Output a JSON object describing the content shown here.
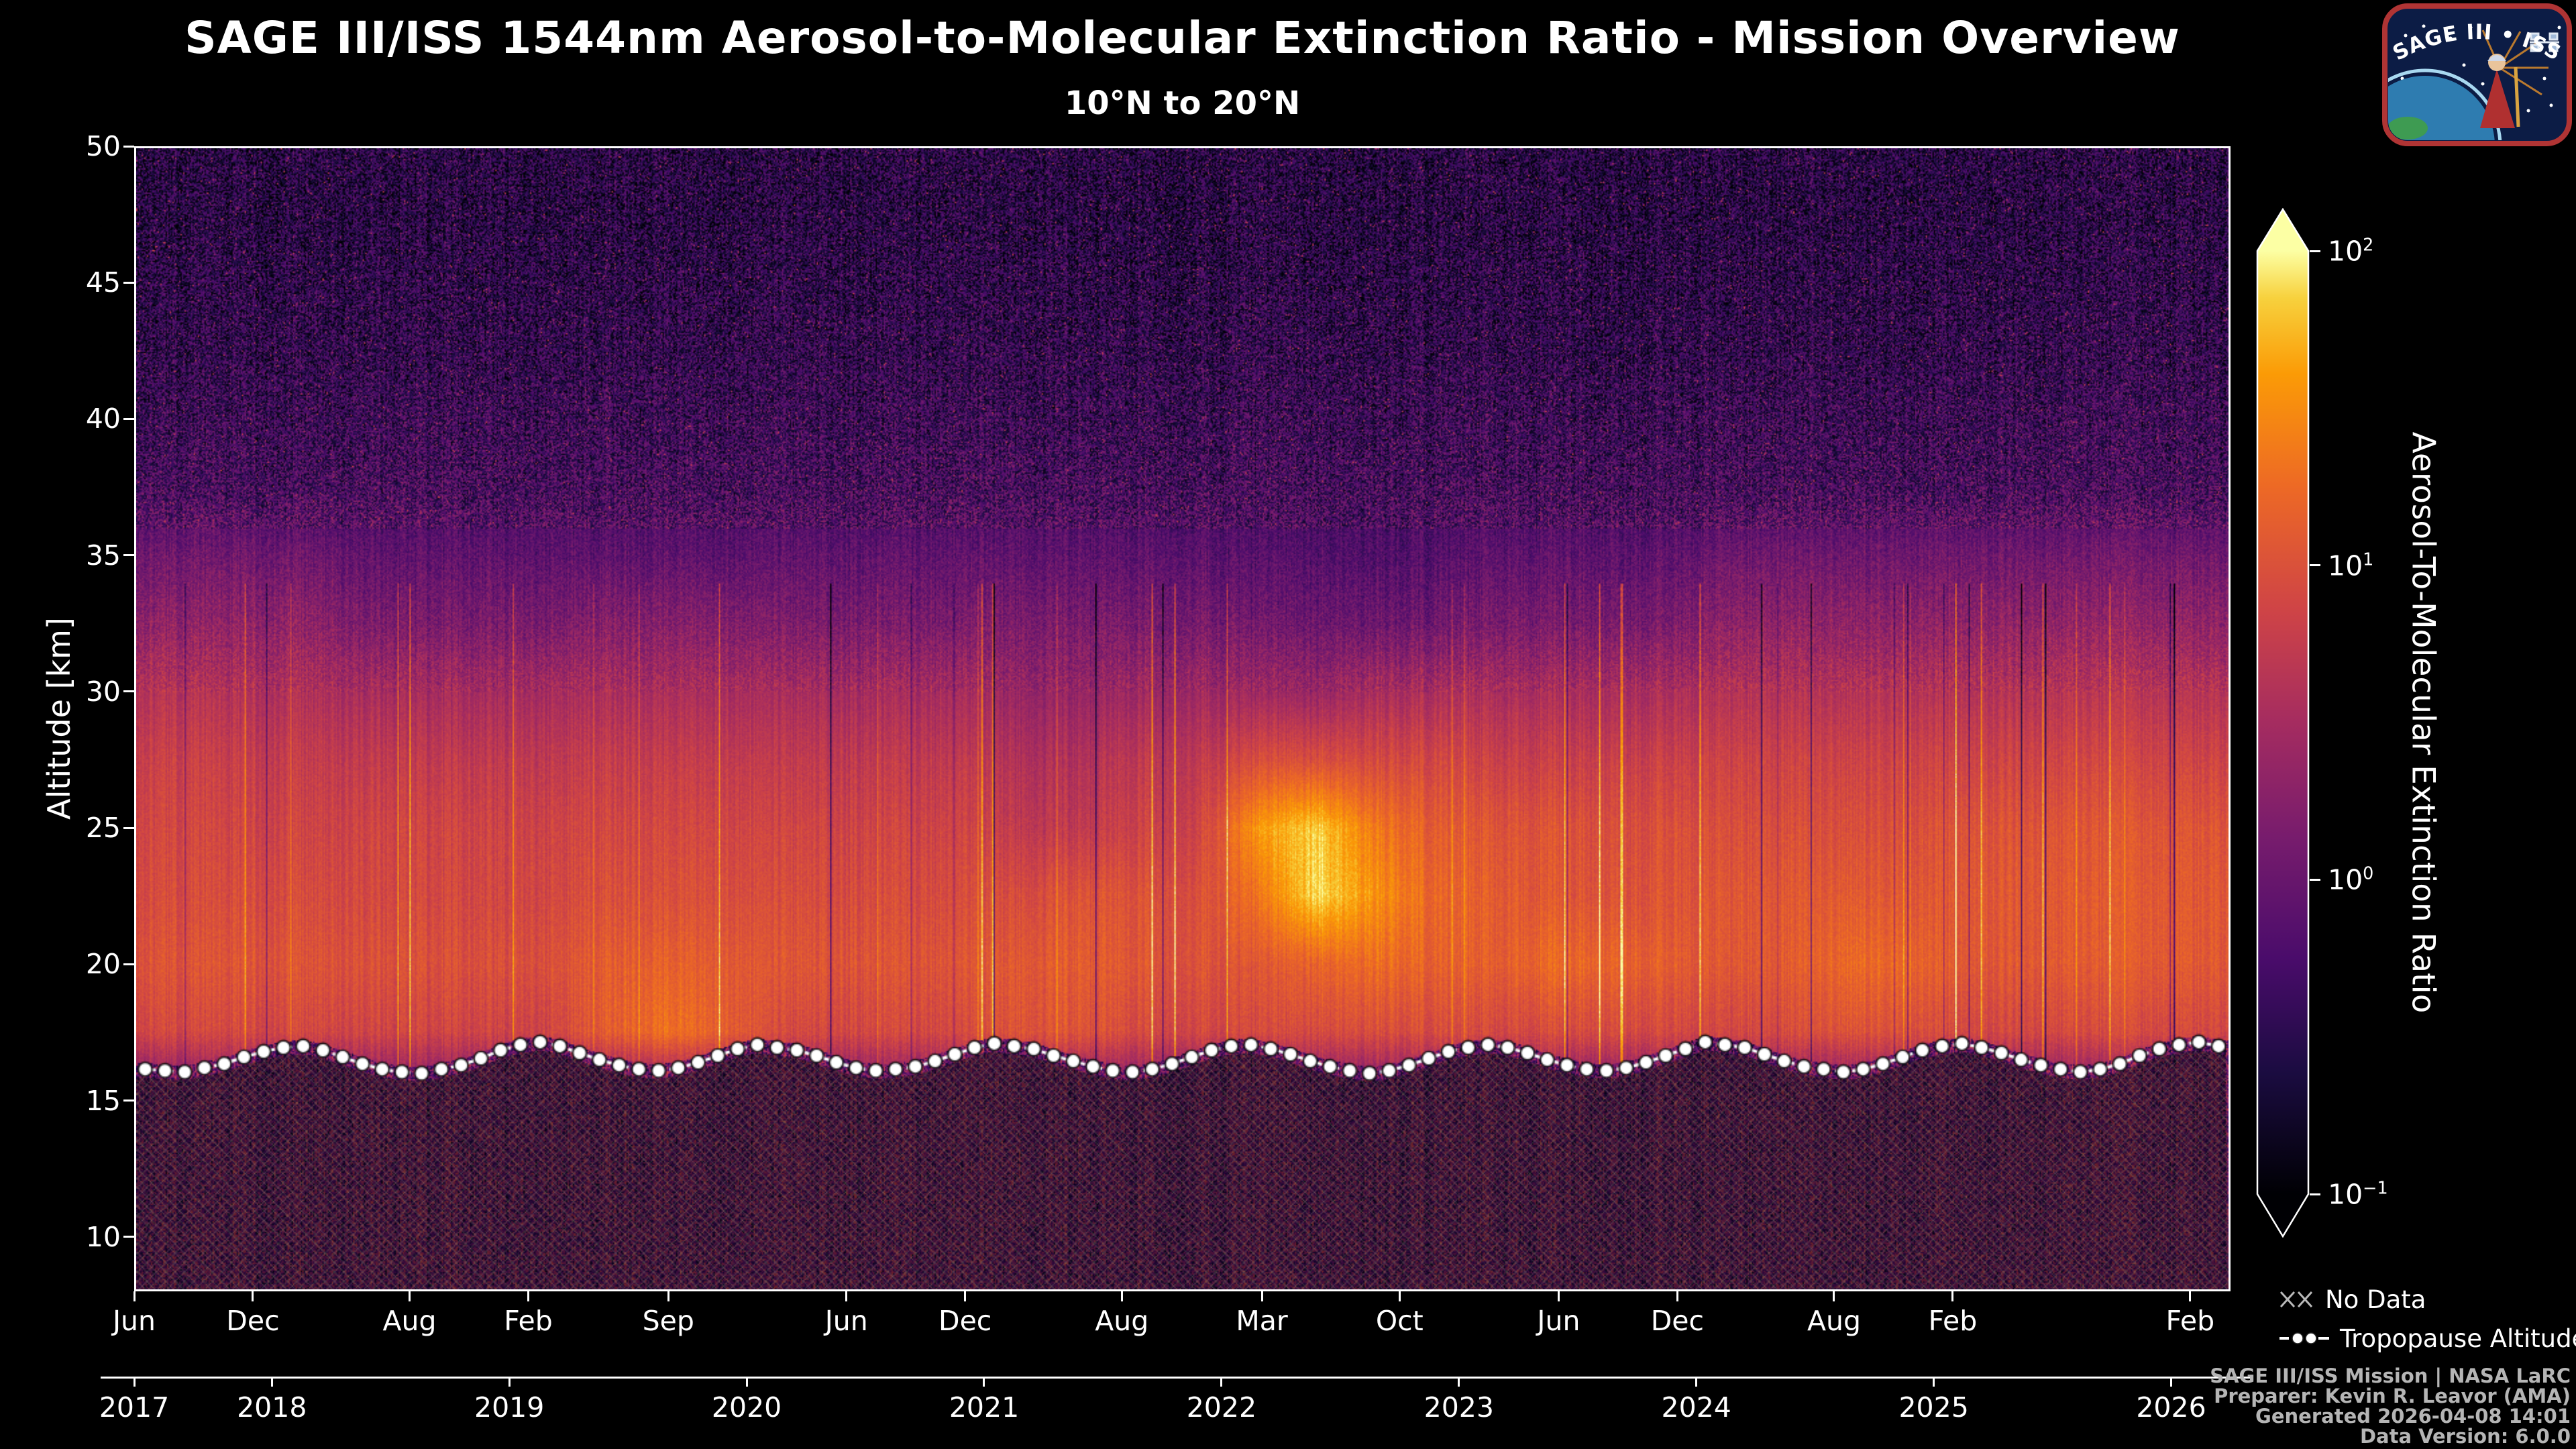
{
  "title": "SAGE III/ISS 1544nm Aerosol-to-Molecular Extinction Ratio - Mission Overview",
  "subtitle": "10°N to 20°N",
  "logo": {
    "text": "SAGE III • ISS"
  },
  "legend": {
    "no_data": "No Data",
    "tropopause": "Tropopause Altitude"
  },
  "icons": {
    "no_data": "xx-crosshatch",
    "tropopause": "dashed-line-with-dots"
  },
  "footer": {
    "lines": [
      "SAGE III/ISS Mission | NASA LaRC",
      "Preparer: Kevin R. Leavor (AMA)",
      "Generated 2026-04-08 14:01",
      "Data Version: 6.0.0"
    ]
  },
  "chart_data": {
    "type": "heatmap",
    "title": "SAGE III/ISS 1544nm Aerosol-to-Molecular Extinction Ratio - Mission Overview",
    "subtitle": "10°N to 20°N",
    "xlabel": "",
    "ylabel": "Altitude [km]",
    "grid": false,
    "x_range_years": [
      2017.42,
      2026.25
    ],
    "y_range_km": [
      8,
      50
    ],
    "y_ticks": [
      10,
      15,
      20,
      25,
      30,
      35,
      40,
      45,
      50
    ],
    "x_month_ticks": [
      {
        "label": "Jun",
        "t": 2017.42
      },
      {
        "label": "Dec",
        "t": 2017.92
      },
      {
        "label": "Aug",
        "t": 2018.58
      },
      {
        "label": "Feb",
        "t": 2019.08
      },
      {
        "label": "Sep",
        "t": 2019.67
      },
      {
        "label": "Jun",
        "t": 2020.42
      },
      {
        "label": "Dec",
        "t": 2020.92
      },
      {
        "label": "Aug",
        "t": 2021.58
      },
      {
        "label": "Mar",
        "t": 2022.17
      },
      {
        "label": "Oct",
        "t": 2022.75
      },
      {
        "label": "Jun",
        "t": 2023.42
      },
      {
        "label": "Dec",
        "t": 2023.92
      },
      {
        "label": "Aug",
        "t": 2024.58
      },
      {
        "label": "Feb",
        "t": 2025.08
      },
      {
        "label": "Feb",
        "t": 2026.08
      }
    ],
    "x_year_ticks": [
      {
        "label": "2017",
        "t": 2017.42
      },
      {
        "label": "2018",
        "t": 2018.0
      },
      {
        "label": "2019",
        "t": 2019.0
      },
      {
        "label": "2020",
        "t": 2020.0
      },
      {
        "label": "2021",
        "t": 2021.0
      },
      {
        "label": "2022",
        "t": 2022.0
      },
      {
        "label": "2023",
        "t": 2023.0
      },
      {
        "label": "2024",
        "t": 2024.0
      },
      {
        "label": "2025",
        "t": 2025.0
      },
      {
        "label": "2026",
        "t": 2026.0
      }
    ],
    "colorbar": {
      "label": "Aerosol-To-Molecular Extinction Ratio",
      "scale": "log",
      "tick_exponents": [
        2,
        1,
        0,
        -1
      ],
      "range_log10": [
        -1.3,
        2.1
      ],
      "colormap": "inferno",
      "stops": [
        [
          0.0,
          "#000004"
        ],
        [
          0.13,
          "#1b0c41"
        ],
        [
          0.25,
          "#4a0c6b"
        ],
        [
          0.38,
          "#781c6d"
        ],
        [
          0.5,
          "#a52c60"
        ],
        [
          0.62,
          "#cf4446"
        ],
        [
          0.75,
          "#ed6925"
        ],
        [
          0.87,
          "#fb9b06"
        ],
        [
          0.95,
          "#f7d13d"
        ],
        [
          1.0,
          "#fcffa4"
        ]
      ]
    },
    "heatmap_log10": {
      "comment_units": "log10 of extinction ratio, coarse grid; rows = altitudes (top to bottom), cols = quarterly times",
      "times_start": 2017.4,
      "times_step": 0.25,
      "altitudes": [
        50,
        47.5,
        45,
        42.5,
        40,
        37.5,
        35,
        32.5,
        30,
        27.5,
        25,
        22.5,
        20,
        17.5,
        15,
        12.5,
        10
      ],
      "values": [
        [
          -0.8,
          -0.8,
          -0.8,
          -0.8,
          -0.8,
          -0.8,
          -0.8,
          -0.8,
          -0.8,
          -0.8,
          -0.8,
          -0.8,
          -0.8,
          -0.8,
          -0.8,
          -0.8,
          -0.8,
          -0.8,
          -0.8,
          -0.8,
          -0.8,
          -0.8,
          -0.8,
          -0.8,
          -0.8,
          -0.8,
          -0.8,
          -0.8,
          -0.8,
          -0.8,
          -0.8,
          -0.8,
          -0.8,
          -0.8,
          -0.8,
          -0.8
        ],
        [
          -0.8,
          -0.8,
          -0.8,
          -0.8,
          -0.8,
          -0.8,
          -0.8,
          -0.8,
          -0.8,
          -0.8,
          -0.8,
          -0.8,
          -0.8,
          -0.8,
          -0.8,
          -0.8,
          -0.8,
          -0.8,
          -0.8,
          -0.8,
          -0.8,
          -0.8,
          -0.8,
          -0.8,
          -0.8,
          -0.8,
          -0.8,
          -0.8,
          -0.8,
          -0.8,
          -0.8,
          -0.8,
          -0.8,
          -0.8,
          -0.8,
          -0.8
        ],
        [
          -0.75,
          -0.75,
          -0.75,
          -0.75,
          -0.75,
          -0.75,
          -0.75,
          -0.75,
          -0.75,
          -0.75,
          -0.75,
          -0.75,
          -0.75,
          -0.75,
          -0.75,
          -0.75,
          -0.75,
          -0.75,
          -0.75,
          -0.75,
          -0.75,
          -0.75,
          -0.75,
          -0.75,
          -0.75,
          -0.75,
          -0.75,
          -0.75,
          -0.75,
          -0.75,
          -0.75,
          -0.75,
          -0.75,
          -0.75,
          -0.75,
          -0.75
        ],
        [
          -0.7,
          -0.7,
          -0.7,
          -0.7,
          -0.7,
          -0.7,
          -0.7,
          -0.7,
          -0.7,
          -0.7,
          -0.7,
          -0.7,
          -0.7,
          -0.7,
          -0.7,
          -0.7,
          -0.7,
          -0.7,
          -0.7,
          -0.7,
          -0.7,
          -0.7,
          -0.7,
          -0.7,
          -0.7,
          -0.7,
          -0.7,
          -0.7,
          -0.7,
          -0.7,
          -0.7,
          -0.7,
          -0.7,
          -0.7,
          -0.7,
          -0.7
        ],
        [
          -0.6,
          -0.6,
          -0.6,
          -0.6,
          -0.6,
          -0.6,
          -0.6,
          -0.6,
          -0.6,
          -0.6,
          -0.6,
          -0.6,
          -0.6,
          -0.6,
          -0.6,
          -0.6,
          -0.6,
          -0.6,
          -0.6,
          -0.6,
          -0.6,
          -0.6,
          -0.6,
          -0.6,
          -0.6,
          -0.6,
          -0.6,
          -0.6,
          -0.6,
          -0.6,
          -0.6,
          -0.6,
          -0.6,
          -0.6,
          -0.6,
          -0.6
        ],
        [
          -0.5,
          -0.5,
          -0.5,
          -0.5,
          -0.5,
          -0.5,
          -0.5,
          -0.5,
          -0.5,
          -0.5,
          -0.5,
          -0.5,
          -0.5,
          -0.5,
          -0.5,
          -0.5,
          -0.5,
          -0.5,
          -0.5,
          -0.5,
          -0.5,
          -0.5,
          -0.5,
          -0.5,
          -0.5,
          -0.5,
          -0.5,
          -0.5,
          -0.5,
          -0.5,
          -0.5,
          -0.5,
          -0.5,
          -0.5,
          -0.5,
          -0.5
        ],
        [
          -0.1,
          -0.1,
          -0.1,
          -0.1,
          -0.25,
          -0.25,
          -0.25,
          -0.25,
          -0.25,
          -0.25,
          -0.25,
          -0.25,
          -0.25,
          -0.25,
          -0.25,
          -0.25,
          -0.25,
          -0.25,
          -0.25,
          -0.35,
          -0.35,
          -0.35,
          -0.35,
          -0.25,
          -0.25,
          -0.25,
          -0.25,
          -0.1,
          -0.1,
          -0.1,
          -0.1,
          -0.1,
          -0.1,
          -0.1,
          -0.1,
          -0.1
        ],
        [
          0.2,
          0.2,
          0.2,
          0.2,
          0.0,
          0.0,
          0.0,
          0.0,
          0.1,
          0.1,
          0.1,
          0.0,
          0.0,
          0.0,
          0.0,
          0.0,
          0.0,
          0.0,
          0.0,
          -0.1,
          -0.1,
          -0.1,
          -0.1,
          0.0,
          0.0,
          0.0,
          0.0,
          0.2,
          0.2,
          0.2,
          0.2,
          0.2,
          0.2,
          0.2,
          0.2,
          0.2
        ],
        [
          0.55,
          0.55,
          0.5,
          0.5,
          0.4,
          0.4,
          0.4,
          0.4,
          0.45,
          0.45,
          0.45,
          0.4,
          0.4,
          0.4,
          0.4,
          0.25,
          0.25,
          0.35,
          0.35,
          0.3,
          0.3,
          0.45,
          0.45,
          0.45,
          0.45,
          0.45,
          0.45,
          0.55,
          0.55,
          0.55,
          0.55,
          0.55,
          0.55,
          0.55,
          0.55,
          0.55
        ],
        [
          0.75,
          0.75,
          0.7,
          0.7,
          0.65,
          0.65,
          0.65,
          0.65,
          0.7,
          0.7,
          0.7,
          0.65,
          0.65,
          0.65,
          0.65,
          0.5,
          0.5,
          0.65,
          0.65,
          0.9,
          0.95,
          0.9,
          0.85,
          0.75,
          0.75,
          0.75,
          0.75,
          0.8,
          0.8,
          0.8,
          0.8,
          0.8,
          0.8,
          0.8,
          0.8,
          0.8
        ],
        [
          0.85,
          0.85,
          0.8,
          0.8,
          0.8,
          0.8,
          0.8,
          0.8,
          0.85,
          0.85,
          0.85,
          0.8,
          0.8,
          0.8,
          0.8,
          0.65,
          0.65,
          0.8,
          0.8,
          1.6,
          1.95,
          1.4,
          1.1,
          1.0,
          1.0,
          0.95,
          0.95,
          0.95,
          0.95,
          0.95,
          0.95,
          1.0,
          1.0,
          1.0,
          1.0,
          1.0
        ],
        [
          0.9,
          0.9,
          0.9,
          0.9,
          0.85,
          0.85,
          0.85,
          0.85,
          0.95,
          0.95,
          0.95,
          0.9,
          0.9,
          0.9,
          0.9,
          0.9,
          1.0,
          1.0,
          0.95,
          1.3,
          2.0,
          1.6,
          1.2,
          1.1,
          1.05,
          1.0,
          1.0,
          1.05,
          1.05,
          1.1,
          1.05,
          1.05,
          1.05,
          1.05,
          1.05,
          1.05
        ],
        [
          1.0,
          1.0,
          1.0,
          1.0,
          0.95,
          0.95,
          0.95,
          0.95,
          1.1,
          1.15,
          1.1,
          1.0,
          1.0,
          1.0,
          1.0,
          1.05,
          1.1,
          1.05,
          1.0,
          1.0,
          1.2,
          1.3,
          1.15,
          1.1,
          1.25,
          1.2,
          1.1,
          1.05,
          1.1,
          1.25,
          1.2,
          1.05,
          1.05,
          1.05,
          1.05,
          1.05
        ],
        [
          0.85,
          0.85,
          0.85,
          0.85,
          0.8,
          0.8,
          0.8,
          0.8,
          1.1,
          1.3,
          1.15,
          0.85,
          0.85,
          0.85,
          0.85,
          1.0,
          1.0,
          0.9,
          0.85,
          0.85,
          0.9,
          0.95,
          0.9,
          0.85,
          0.9,
          0.9,
          0.85,
          0.85,
          0.9,
          1.0,
          0.95,
          0.85,
          0.85,
          0.85,
          0.85,
          0.85
        ],
        [
          -0.1,
          -0.1,
          -0.1,
          -0.1,
          -0.1,
          -0.1,
          -0.1,
          -0.1,
          -0.1,
          -0.1,
          -0.1,
          -0.1,
          -0.1,
          -0.1,
          -0.1,
          -0.1,
          -0.1,
          -0.1,
          -0.1,
          -0.1,
          -0.1,
          -0.1,
          -0.1,
          -0.1,
          -0.1,
          -0.1,
          -0.1,
          -0.1,
          -0.1,
          -0.1,
          -0.1,
          -0.1,
          -0.1,
          -0.1,
          -0.1,
          -0.1
        ],
        [
          -0.3,
          -0.3,
          -0.3,
          -0.3,
          -0.3,
          -0.3,
          -0.3,
          -0.3,
          -0.3,
          -0.3,
          -0.3,
          -0.3,
          -0.3,
          -0.3,
          -0.3,
          -0.3,
          -0.3,
          -0.3,
          -0.3,
          -0.3,
          -0.3,
          -0.3,
          -0.3,
          -0.3,
          -0.3,
          -0.3,
          -0.3,
          -0.3,
          -0.3,
          -0.3,
          -0.3,
          -0.3,
          -0.3,
          -0.3,
          -0.3,
          -0.3
        ],
        [
          -0.4,
          -0.4,
          -0.4,
          -0.4,
          -0.4,
          -0.4,
          -0.4,
          -0.4,
          -0.4,
          -0.4,
          -0.4,
          -0.4,
          -0.4,
          -0.4,
          -0.4,
          -0.4,
          -0.4,
          -0.4,
          -0.4,
          -0.4,
          -0.4,
          -0.4,
          -0.4,
          -0.4,
          -0.4,
          -0.4,
          -0.4,
          -0.4,
          -0.4,
          -0.4,
          -0.4,
          -0.4,
          -0.4,
          -0.4,
          -0.4,
          -0.4
        ]
      ]
    },
    "tropopause": {
      "t_start": 2017.458,
      "t_step": 0.0833333,
      "altitudes_km": [
        16.1,
        16.05,
        16.0,
        16.15,
        16.3,
        16.55,
        16.75,
        16.9,
        16.95,
        16.8,
        16.55,
        16.3,
        16.1,
        16.0,
        15.95,
        16.1,
        16.25,
        16.5,
        16.8,
        17.0,
        17.1,
        16.95,
        16.7,
        16.45,
        16.25,
        16.1,
        16.05,
        16.15,
        16.35,
        16.6,
        16.85,
        17.0,
        16.9,
        16.8,
        16.6,
        16.35,
        16.15,
        16.05,
        16.1,
        16.2,
        16.4,
        16.65,
        16.9,
        17.05,
        16.95,
        16.85,
        16.6,
        16.4,
        16.2,
        16.05,
        16.0,
        16.1,
        16.3,
        16.55,
        16.8,
        16.95,
        17.0,
        16.85,
        16.65,
        16.4,
        16.2,
        16.05,
        15.95,
        16.05,
        16.25,
        16.5,
        16.75,
        16.9,
        17.0,
        16.9,
        16.7,
        16.45,
        16.25,
        16.1,
        16.05,
        16.15,
        16.35,
        16.6,
        16.85,
        17.1,
        17.0,
        16.9,
        16.65,
        16.4,
        16.2,
        16.1,
        16.0,
        16.1,
        16.3,
        16.55,
        16.8,
        16.95,
        17.05,
        16.9,
        16.7,
        16.45,
        16.25,
        16.1,
        16.0,
        16.1,
        16.3,
        16.6,
        16.85,
        17.0,
        17.1,
        16.95
      ]
    },
    "legend_entries": [
      "No Data",
      "Tropopause Altitude"
    ]
  }
}
